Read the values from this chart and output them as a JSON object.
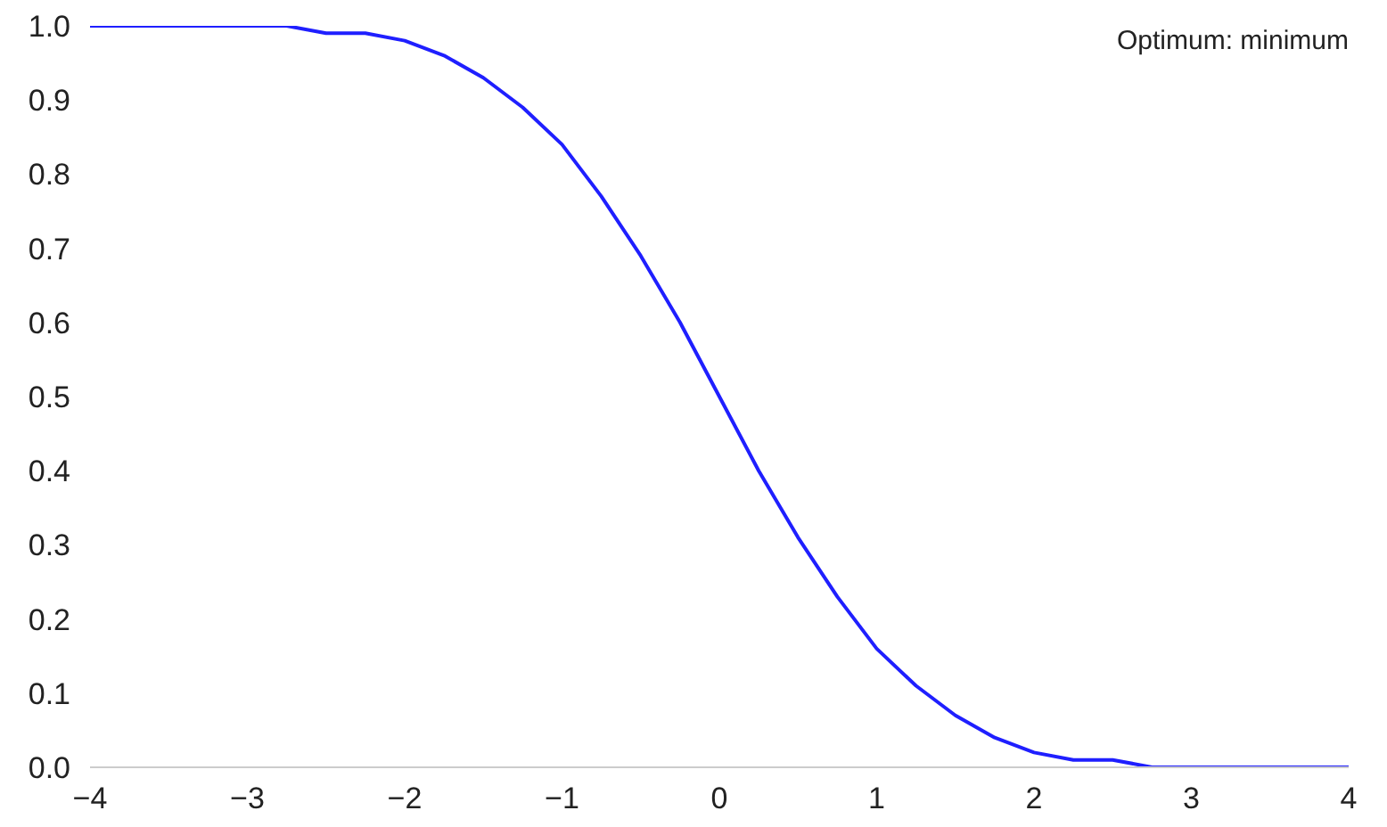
{
  "chart_data": {
    "type": "line",
    "annotations": [
      "Optimum: minimum"
    ],
    "x": [
      -4,
      -3.75,
      -3.5,
      -3.25,
      -3,
      -2.75,
      -2.5,
      -2.25,
      -2,
      -1.75,
      -1.5,
      -1.25,
      -1,
      -0.75,
      -0.5,
      -0.25,
      0,
      0.25,
      0.5,
      0.75,
      1,
      1.25,
      1.5,
      1.75,
      2,
      2.25,
      2.5,
      2.75,
      3,
      3.25,
      3.5,
      3.75,
      4
    ],
    "series": [
      {
        "color": "#1f1fff",
        "values": [
          1.0,
          1.0,
          1.0,
          1.0,
          1.0,
          1.0,
          0.99,
          0.99,
          0.98,
          0.96,
          0.93,
          0.89,
          0.84,
          0.77,
          0.69,
          0.6,
          0.5,
          0.4,
          0.31,
          0.23,
          0.16,
          0.11,
          0.07,
          0.04,
          0.02,
          0.01,
          0.01,
          0.0,
          0.0,
          0.0,
          0.0,
          0.0,
          0.0
        ]
      }
    ],
    "xlim": [
      -4,
      4
    ],
    "ylim": [
      0,
      1
    ],
    "xticks": [
      -4,
      -3,
      -2,
      -1,
      0,
      1,
      2,
      3,
      4
    ],
    "yticks": [
      {
        "value": 0,
        "label": "0.0"
      },
      0.1,
      0.2,
      0.3,
      0.4,
      0.5,
      0.6,
      0.7,
      0.8,
      0.9,
      {
        "value": 1,
        "label": "1.0"
      }
    ],
    "grid": false,
    "marker": "none",
    "line_style": "solid"
  }
}
